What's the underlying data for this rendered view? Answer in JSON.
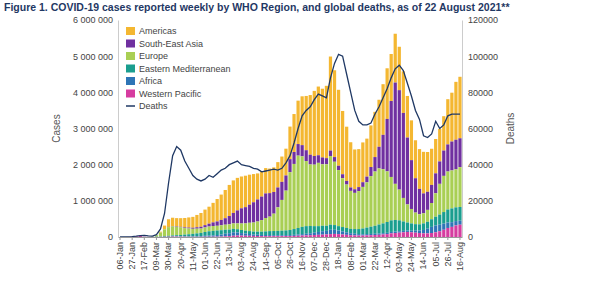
{
  "chart_data": {
    "type": "bar",
    "title": "Figure 1. COVID-19 cases reported weekly by WHO Region, and global deaths, as of 22 August 2021**",
    "ylabel": "Cases",
    "y2label": "Deaths",
    "stacked": true,
    "grid": false,
    "legend": "top-left",
    "categories": [
      "06-Jan",
      null,
      null,
      "27-Jan",
      null,
      null,
      "17-Feb",
      null,
      null,
      "09-Mar",
      null,
      null,
      "30-Mar",
      null,
      null,
      "20-Apr",
      null,
      null,
      "11-May",
      null,
      null,
      "01-Jun",
      null,
      null,
      "22-Jun",
      null,
      null,
      "13-Jul",
      null,
      null,
      "03-Aug",
      null,
      null,
      "24-Aug",
      null,
      null,
      "14-Sep",
      null,
      null,
      "05-Oct",
      null,
      null,
      "26-Oct",
      null,
      null,
      "16-Nov",
      null,
      null,
      "07-Dec",
      null,
      null,
      "28-Dec",
      null,
      null,
      "18-Jan",
      null,
      null,
      "08-Feb",
      null,
      null,
      "01-Mar",
      null,
      null,
      "22-Mar",
      null,
      null,
      "12-Apr",
      null,
      null,
      "03-May",
      null,
      null,
      "24-May",
      null,
      null,
      "14-Jun",
      null,
      null,
      "05-Jul",
      null,
      null,
      "26-Jul",
      null,
      null,
      "16-Aug"
    ],
    "ylim": [
      0,
      6000000
    ],
    "yticks": [
      0,
      {
        "value": 1000000,
        "label": "1 000 000"
      },
      {
        "value": 2000000,
        "label": "2 000 000"
      },
      {
        "value": 3000000,
        "label": "3 000 000"
      },
      {
        "value": 4000000,
        "label": "4 000 000"
      },
      {
        "value": 5000000,
        "label": "5 000 000"
      },
      {
        "value": 6000000,
        "label": "6 000 000"
      }
    ],
    "y2lim": [
      0,
      120000
    ],
    "y2ticks": [
      0,
      20000,
      40000,
      60000,
      80000,
      100000,
      120000
    ],
    "series": [
      {
        "name": "Americas",
        "color": "#f4b731",
        "type": "bar",
        "values": [
          0,
          0,
          3,
          5,
          5,
          0,
          0,
          50,
          400,
          2500,
          25000,
          100000,
          210000,
          230000,
          230000,
          240000,
          260000,
          280000,
          300000,
          340000,
          380000,
          430000,
          470000,
          540000,
          620000,
          700000,
          780000,
          860000,
          900000,
          900000,
          880000,
          870000,
          830000,
          780000,
          720000,
          700000,
          700000,
          680000,
          680000,
          700000,
          700000,
          740000,
          900000,
          1050000,
          1200000,
          1350000,
          1500000,
          1650000,
          1800000,
          1900000,
          1900000,
          2000000,
          2600000,
          2400000,
          2100000,
          1750000,
          1500000,
          1250000,
          1100000,
          1050000,
          1100000,
          1050000,
          1150000,
          1250000,
          1300000,
          1400000,
          1400000,
          1300000,
          1350000,
          1200000,
          1150000,
          1150000,
          1100000,
          1050000,
          1100000,
          1150000,
          1100000,
          1000000,
          950000,
          900000,
          950000,
          1250000,
          1350000,
          1600000,
          1700000
        ]
      },
      {
        "name": "South-East Asia",
        "color": "#7030a0",
        "type": "bar",
        "values": [
          0,
          3,
          5,
          10,
          5,
          0,
          0,
          0,
          50,
          200,
          500,
          2500,
          7000,
          10000,
          12000,
          15000,
          20000,
          25000,
          30000,
          40000,
          50000,
          65000,
          80000,
          100000,
          120000,
          150000,
          180000,
          230000,
          290000,
          360000,
          420000,
          450000,
          500000,
          560000,
          610000,
          650000,
          680000,
          650000,
          600000,
          550000,
          500000,
          420000,
          360000,
          330000,
          320000,
          310000,
          300000,
          270000,
          240000,
          210000,
          190000,
          170000,
          150000,
          130000,
          120000,
          110000,
          100000,
          95000,
          100000,
          110000,
          130000,
          160000,
          250000,
          400000,
          600000,
          950000,
          1450000,
          2100000,
          2800000,
          2750000,
          2350000,
          1850000,
          1350000,
          950000,
          700000,
          550000,
          500000,
          500000,
          550000,
          620000,
          700000,
          750000,
          800000,
          820000,
          800000
        ]
      },
      {
        "name": "Europe",
        "color": "#a9cf54",
        "type": "bar",
        "values": [
          0,
          0,
          3,
          10,
          20,
          10,
          30,
          1000,
          8000,
          40000,
          110000,
          190000,
          240000,
          250000,
          230000,
          210000,
          180000,
          160000,
          140000,
          130000,
          120000,
          125000,
          130000,
          135000,
          130000,
          135000,
          140000,
          145000,
          150000,
          160000,
          180000,
          200000,
          230000,
          250000,
          280000,
          320000,
          370000,
          400000,
          480000,
          650000,
          850000,
          1100000,
          1600000,
          1800000,
          2000000,
          1950000,
          1800000,
          1700000,
          1700000,
          1750000,
          1700000,
          1700000,
          1900000,
          1750000,
          1550000,
          1350000,
          1200000,
          1050000,
          1000000,
          1050000,
          1150000,
          1250000,
          1400000,
          1500000,
          1550000,
          1500000,
          1400000,
          1200000,
          1000000,
          850000,
          650000,
          500000,
          400000,
          320000,
          280000,
          280000,
          330000,
          450000,
          650000,
          850000,
          1000000,
          1050000,
          1050000,
          1050000,
          1100000
        ]
      },
      {
        "name": "Eastern Mediterranean",
        "color": "#1a9e8f",
        "type": "bar",
        "values": [
          0,
          0,
          0,
          4,
          5,
          0,
          50,
          500,
          5000,
          8000,
          9000,
          17000,
          22000,
          28000,
          32000,
          40000,
          50000,
          60000,
          70000,
          80000,
          90000,
          105000,
          120000,
          125000,
          125000,
          120000,
          110000,
          100000,
          95000,
          90000,
          85000,
          80000,
          80000,
          80000,
          85000,
          90000,
          100000,
          110000,
          115000,
          120000,
          125000,
          130000,
          140000,
          160000,
          180000,
          200000,
          210000,
          200000,
          180000,
          160000,
          150000,
          140000,
          140000,
          130000,
          120000,
          120000,
          120000,
          120000,
          130000,
          140000,
          160000,
          180000,
          200000,
          220000,
          250000,
          270000,
          300000,
          320000,
          320000,
          300000,
          260000,
          220000,
          200000,
          180000,
          170000,
          180000,
          190000,
          210000,
          240000,
          280000,
          320000,
          360000,
          380000,
          380000,
          380000
        ]
      },
      {
        "name": "Africa",
        "color": "#2e75b6",
        "type": "bar",
        "values": [
          0,
          0,
          0,
          0,
          0,
          0,
          0,
          1,
          10,
          50,
          400,
          1500,
          3000,
          4000,
          6000,
          7000,
          8000,
          10000,
          12000,
          15000,
          18000,
          25000,
          30000,
          35000,
          45000,
          55000,
          70000,
          80000,
          95000,
          85000,
          70000,
          60000,
          50000,
          40000,
          35000,
          32000,
          30000,
          28000,
          25000,
          25000,
          25000,
          25000,
          25000,
          30000,
          35000,
          40000,
          45000,
          55000,
          65000,
          80000,
          95000,
          100000,
          120000,
          115000,
          100000,
          85000,
          70000,
          55000,
          45000,
          40000,
          35000,
          35000,
          35000,
          35000,
          35000,
          35000,
          35000,
          40000,
          40000,
          40000,
          40000,
          40000,
          45000,
          55000,
          70000,
          95000,
          130000,
          170000,
          190000,
          180000,
          170000,
          150000,
          130000,
          120000,
          110000
        ]
      },
      {
        "name": "Western Pacific",
        "color": "#d63ca0",
        "type": "bar",
        "values": [
          59,
          250,
          2500,
          14500,
          20000,
          28000,
          7500,
          4000,
          3500,
          2000,
          3000,
          5000,
          8000,
          11000,
          12000,
          9000,
          8000,
          6000,
          5000,
          5000,
          6000,
          8000,
          8000,
          9000,
          10000,
          13000,
          20000,
          25000,
          35000,
          40000,
          38000,
          35000,
          33000,
          30000,
          28000,
          25000,
          25000,
          25000,
          25000,
          25000,
          25000,
          27000,
          28000,
          30000,
          35000,
          40000,
          45000,
          50000,
          55000,
          60000,
          65000,
          70000,
          80000,
          85000,
          80000,
          70000,
          60000,
          50000,
          45000,
          40000,
          40000,
          45000,
          50000,
          55000,
          60000,
          70000,
          80000,
          100000,
          110000,
          120000,
          130000,
          140000,
          130000,
          120000,
          110000,
          100000,
          100000,
          110000,
          130000,
          160000,
          200000,
          250000,
          280000,
          320000,
          340000
        ]
      },
      {
        "name": "Deaths",
        "color": "#1f3864",
        "type": "line",
        "axis": "y2",
        "values": [
          0,
          2,
          80,
          260,
          500,
          800,
          900,
          600,
          500,
          1300,
          4500,
          13000,
          30000,
          45000,
          50000,
          48000,
          42000,
          38000,
          34000,
          32000,
          31000,
          32000,
          34000,
          33000,
          35000,
          37000,
          38000,
          40000,
          41000,
          42000,
          40000,
          39500,
          39000,
          38000,
          37500,
          36000,
          36500,
          37000,
          37500,
          37000,
          38000,
          41000,
          45000,
          52000,
          60000,
          67000,
          70000,
          72000,
          76000,
          79000,
          78000,
          77000,
          88000,
          96000,
          101000,
          100000,
          90000,
          80000,
          70000,
          64000,
          62000,
          62000,
          63000,
          68000,
          72000,
          77000,
          82000,
          88000,
          93000,
          95000,
          92000,
          85000,
          78000,
          70000,
          65000,
          56000,
          55000,
          57000,
          64000,
          60000,
          62000,
          67000,
          68000,
          68000,
          68000
        ]
      }
    ]
  }
}
